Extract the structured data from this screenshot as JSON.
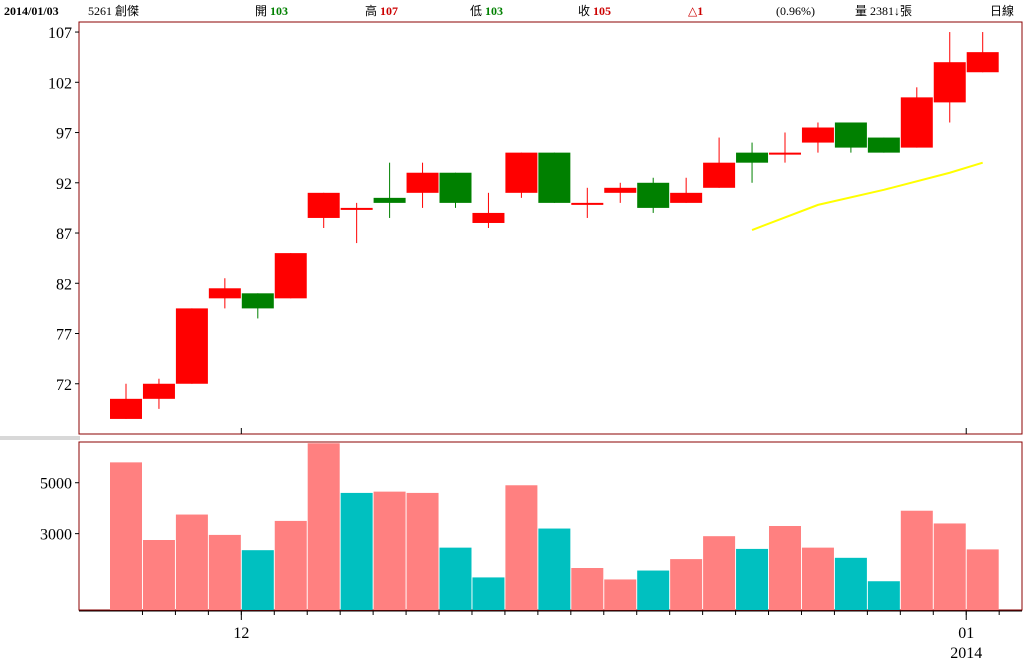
{
  "header": {
    "date": "2014/01/03",
    "stock": "5261 創傑",
    "open_label": "開",
    "open_value": "103",
    "high_label": "高",
    "high_value": "107",
    "low_label": "低",
    "low_value": "103",
    "close_label": "收",
    "close_value": "105",
    "change_symbol": "△",
    "change_value": "1",
    "change_pct": "(0.96%)",
    "volume_label": "量",
    "volume_value": "2381",
    "volume_arrow": "↓",
    "volume_unit": "張",
    "period": "日線"
  },
  "colors": {
    "up": "#ff0000",
    "down": "#008000",
    "vol_up": "#ff8080",
    "vol_down": "#00c0c0",
    "ma": "#ffff00",
    "frame": "#8b0000"
  },
  "chart_data": [
    {
      "type": "candlestick",
      "ylim": [
        67,
        108
      ],
      "yticks": [
        72,
        77,
        82,
        87,
        92,
        97,
        102,
        107
      ],
      "candles": [
        {
          "o": 68.5,
          "h": 72.0,
          "l": 68.5,
          "c": 70.5
        },
        {
          "o": 70.5,
          "h": 72.5,
          "l": 69.5,
          "c": 72.0
        },
        {
          "o": 72.0,
          "h": 79.5,
          "l": 72.0,
          "c": 79.5
        },
        {
          "o": 80.5,
          "h": 82.5,
          "l": 79.5,
          "c": 81.5
        },
        {
          "o": 81.0,
          "h": 81.0,
          "l": 78.5,
          "c": 79.5
        },
        {
          "o": 80.5,
          "h": 85.0,
          "l": 80.5,
          "c": 85.0
        },
        {
          "o": 88.5,
          "h": 91.0,
          "l": 87.5,
          "c": 91.0
        },
        {
          "o": 89.5,
          "h": 90.0,
          "l": 86.0,
          "c": 89.5
        },
        {
          "o": 90.5,
          "h": 94.0,
          "l": 88.5,
          "c": 90.0
        },
        {
          "o": 91.0,
          "h": 94.0,
          "l": 89.5,
          "c": 93.0
        },
        {
          "o": 93.0,
          "h": 93.0,
          "l": 89.5,
          "c": 90.0
        },
        {
          "o": 88.0,
          "h": 91.0,
          "l": 87.5,
          "c": 89.0
        },
        {
          "o": 91.0,
          "h": 95.0,
          "l": 90.5,
          "c": 95.0
        },
        {
          "o": 95.0,
          "h": 95.0,
          "l": 90.0,
          "c": 90.0
        },
        {
          "o": 90.0,
          "h": 91.5,
          "l": 88.5,
          "c": 90.0
        },
        {
          "o": 91.0,
          "h": 92.0,
          "l": 90.0,
          "c": 91.5
        },
        {
          "o": 92.0,
          "h": 92.5,
          "l": 89.0,
          "c": 89.5
        },
        {
          "o": 90.0,
          "h": 92.5,
          "l": 90.0,
          "c": 91.0
        },
        {
          "o": 91.5,
          "h": 96.5,
          "l": 91.5,
          "c": 94.0
        },
        {
          "o": 95.0,
          "h": 96.0,
          "l": 92.0,
          "c": 94.0
        },
        {
          "o": 95.0,
          "h": 97.0,
          "l": 94.0,
          "c": 95.0
        },
        {
          "o": 96.0,
          "h": 98.0,
          "l": 95.0,
          "c": 97.5
        },
        {
          "o": 98.0,
          "h": 98.0,
          "l": 95.0,
          "c": 95.5
        },
        {
          "o": 96.5,
          "h": 96.5,
          "l": 95.0,
          "c": 95.0
        },
        {
          "o": 95.5,
          "h": 101.5,
          "l": 95.5,
          "c": 100.5
        },
        {
          "o": 100.0,
          "h": 107.0,
          "l": 98.0,
          "c": 104.0
        },
        {
          "o": 103.0,
          "h": 107.0,
          "l": 103.0,
          "c": 105.0
        }
      ],
      "ma_line": [
        {
          "i": 19,
          "v": 87.3
        },
        {
          "i": 21,
          "v": 89.8
        },
        {
          "i": 23,
          "v": 91.3
        },
        {
          "i": 25,
          "v": 93.0
        },
        {
          "i": 26,
          "v": 94.0
        }
      ]
    },
    {
      "type": "bar",
      "ylim": [
        0,
        6600
      ],
      "yticks": [
        3000,
        5000
      ],
      "values": [
        5800,
        2750,
        3750,
        2950,
        2350,
        3500,
        6550,
        4600,
        4650,
        4600,
        2450,
        1280,
        4900,
        3200,
        1650,
        1200,
        1550,
        2000,
        2900,
        2400,
        3300,
        2450,
        2050,
        1130,
        3900,
        3400,
        2381
      ],
      "up": [
        true,
        true,
        true,
        true,
        false,
        true,
        true,
        false,
        true,
        true,
        false,
        false,
        true,
        false,
        true,
        true,
        false,
        true,
        true,
        false,
        true,
        true,
        false,
        false,
        true,
        true,
        true
      ]
    }
  ],
  "x_axis": {
    "labels": [
      {
        "i": 3.5,
        "text": "12"
      },
      {
        "i": 25.5,
        "text": "01"
      }
    ],
    "year": {
      "i": 25.5,
      "text": "2014"
    }
  }
}
